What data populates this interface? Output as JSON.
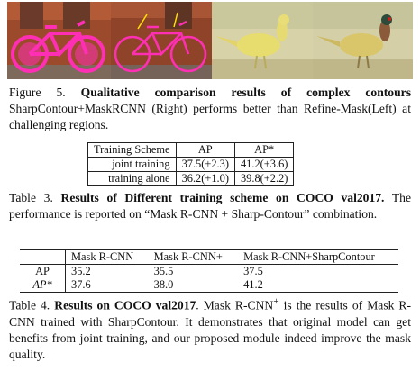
{
  "figure": {
    "images": [
      {
        "icon": "bicycle-magenta-mask-image"
      },
      {
        "icon": "bicycle-refined-mask-image"
      },
      {
        "icon": "pheasant-refinemask-image"
      },
      {
        "icon": "pheasant-sharpcontour-image"
      }
    ],
    "caption_label": "Figure 5.",
    "caption_bold": "Qualitative comparison results of complex contours",
    "caption_rest": "SharpContour+MaskRCNN (Right) performs better than Refine-Mask(Left) at challenging regions."
  },
  "table3": {
    "headers": [
      "Training Scheme",
      "AP",
      "AP*"
    ],
    "rows": [
      [
        "joint training",
        "37.5(+2.3)",
        "41.2(+3.6)"
      ],
      [
        "training alone",
        "36.2(+1.0)",
        "39.8(+2.2)"
      ]
    ],
    "caption_label": "Table 3.",
    "caption_bold": "Results of Different training scheme on COCO val2017.",
    "caption_rest": "The performance is reported on “Mask R-CNN + Sharp-Contour” combination."
  },
  "table4": {
    "headers": [
      "",
      "Mask R-CNN",
      "Mask R-CNN+",
      "Mask R-CNN+SharpContour"
    ],
    "rows": [
      [
        "AP",
        "35.2",
        "35.5",
        "37.5"
      ],
      [
        "AP*",
        "37.6",
        "38.0",
        "41.2"
      ]
    ],
    "caption_label": "Table 4.",
    "caption_bold": "Results on COCO val2017",
    "caption_rest_1": ". Mask R-CNN",
    "caption_sup": "+",
    "caption_rest_2": " is the results of Mask R-CNN trained with SharpContour. It demonstrates that original model can get benefits from joint training, and our proposed module indeed improve the mask quality."
  },
  "colors": {
    "mask_magenta": "#ff2fb5",
    "wall_brick": "#a3502e",
    "pheasant_bg": "#d8d2a8"
  }
}
